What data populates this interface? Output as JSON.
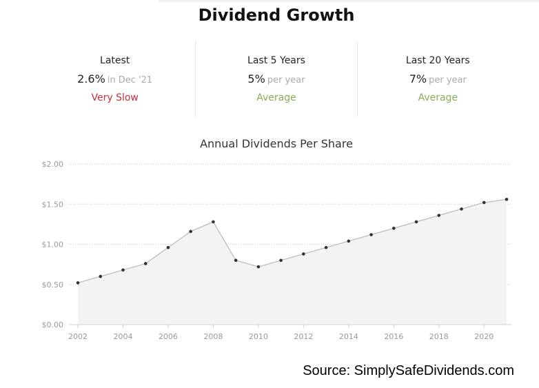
{
  "header": {
    "title": "Dividend Growth"
  },
  "stats": [
    {
      "label": "Latest",
      "value": "2.6%",
      "suffix": "in Dec '21",
      "rating": "Very Slow",
      "rating_color": "#c0303c"
    },
    {
      "label": "Last 5 Years",
      "value": "5%",
      "suffix": "per year",
      "rating": "Average",
      "rating_color": "#8aaa58"
    },
    {
      "label": "Last 20 Years",
      "value": "7%",
      "suffix": "per year",
      "rating": "Average",
      "rating_color": "#8aaa58"
    }
  ],
  "chart_data": {
    "type": "area",
    "title": "Annual Dividends Per Share",
    "x": [
      2002,
      2003,
      2004,
      2005,
      2006,
      2007,
      2008,
      2009,
      2010,
      2011,
      2012,
      2013,
      2014,
      2015,
      2016,
      2017,
      2018,
      2019,
      2020,
      2021
    ],
    "values": [
      0.52,
      0.6,
      0.68,
      0.76,
      0.96,
      1.16,
      1.28,
      0.8,
      0.72,
      0.8,
      0.88,
      0.96,
      1.04,
      1.12,
      1.2,
      1.28,
      1.36,
      1.44,
      1.52,
      1.56
    ],
    "xticks": [
      "2002",
      "2004",
      "2006",
      "2008",
      "2010",
      "2012",
      "2014",
      "2016",
      "2018",
      "2020"
    ],
    "xtick_values": [
      2002,
      2004,
      2006,
      2008,
      2010,
      2012,
      2014,
      2016,
      2018,
      2020
    ],
    "yticks": [
      "$0.00",
      "$0.50",
      "$1.00",
      "$1.50",
      "$2.00"
    ],
    "ytick_values": [
      0,
      0.5,
      1.0,
      1.5,
      2.0
    ],
    "ylim": [
      0,
      2
    ],
    "xlim": [
      2002,
      2021
    ],
    "grid": true,
    "legend": "none",
    "line_color": "#bdbdbd",
    "fill_color": "#f3f3f3",
    "point_color": "#333333"
  },
  "footer": {
    "source": "Source: SimplySafeDividends.com"
  }
}
